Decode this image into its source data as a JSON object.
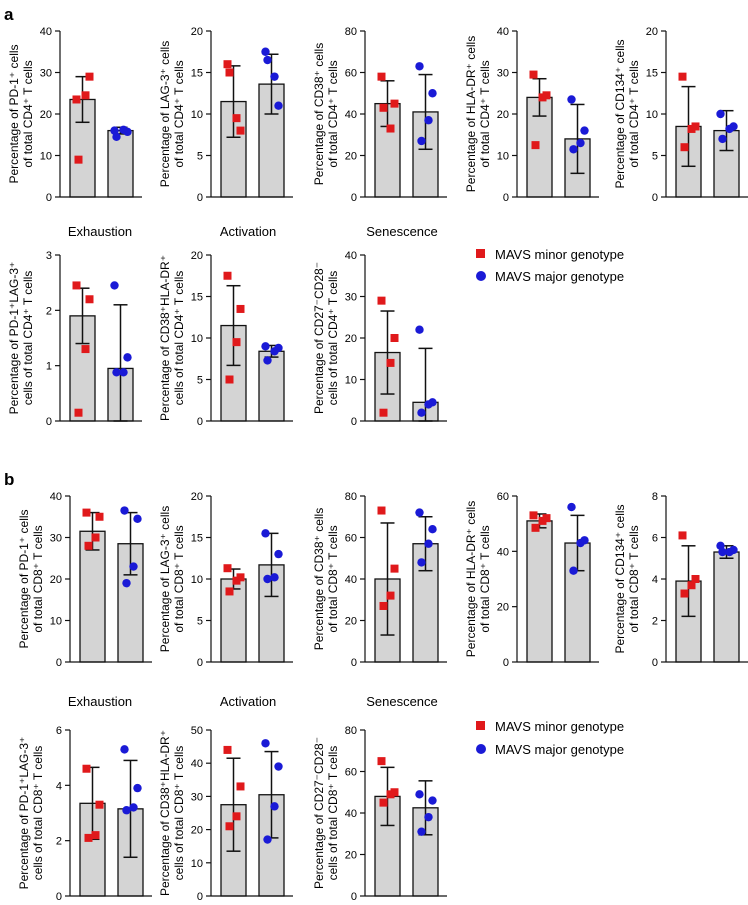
{
  "panel_labels": [
    "a",
    "b"
  ],
  "section_titles": [
    "Exhaustion",
    "Activation",
    "Senescence"
  ],
  "legend": [
    {
      "label": "MAVS minor genotype",
      "color": "#e0191b",
      "marker": "square"
    },
    {
      "label": "MAVS major genotype",
      "color": "#1a1ad6",
      "marker": "circle"
    }
  ],
  "colors": {
    "minor": "#e0191b",
    "major": "#1a1ad6",
    "bar_fill": "#d4d4d4",
    "axis": "#111111"
  },
  "chart_data": [
    {
      "type": "bar",
      "panel": "a",
      "ylabel": [
        "Percentage of PD-1⁺ cells",
        "of total CD4⁺ T cells"
      ],
      "ylim": [
        0,
        40
      ],
      "yticks": [
        0,
        10,
        20,
        30,
        40
      ],
      "series": [
        {
          "group": "minor",
          "mean": 23.5,
          "sd": 5.5,
          "points": [
            23.5,
            29,
            24.5,
            9
          ]
        },
        {
          "group": "major",
          "mean": 16,
          "sd": 0.8,
          "points": [
            16,
            15.7,
            16.2,
            14.5
          ]
        }
      ]
    },
    {
      "type": "bar",
      "panel": "a",
      "ylabel": [
        "Percentage of LAG-3⁺ cells",
        "of total CD4⁺ T cells"
      ],
      "ylim": [
        0,
        20
      ],
      "yticks": [
        0,
        5,
        10,
        15,
        20
      ],
      "series": [
        {
          "group": "minor",
          "mean": 11.5,
          "sd": 4.3,
          "points": [
            16,
            8,
            9.5,
            15
          ]
        },
        {
          "group": "major",
          "mean": 13.6,
          "sd": 3.6,
          "points": [
            17.5,
            11,
            14.5,
            16.5
          ]
        }
      ]
    },
    {
      "type": "bar",
      "panel": "a",
      "ylabel": [
        "Percentage of CD38⁺ cells",
        "of total CD4⁺ T cells"
      ],
      "ylim": [
        0,
        80
      ],
      "yticks": [
        0,
        20,
        40,
        60,
        80
      ],
      "series": [
        {
          "group": "minor",
          "mean": 45,
          "sd": 11,
          "points": [
            58,
            45,
            33,
            43
          ]
        },
        {
          "group": "major",
          "mean": 41,
          "sd": 18,
          "points": [
            63,
            50,
            37,
            27
          ]
        }
      ]
    },
    {
      "type": "bar",
      "panel": "a",
      "ylabel": [
        "Percentage of HLA-DR⁺ cells",
        "of total CD4⁺ T cells"
      ],
      "ylim": [
        0,
        40
      ],
      "yticks": [
        0,
        10,
        20,
        30,
        40
      ],
      "series": [
        {
          "group": "minor",
          "mean": 24,
          "sd": 4.5,
          "points": [
            29.5,
            24.5,
            24,
            12.5
          ]
        },
        {
          "group": "major",
          "mean": 14,
          "sd": 8.3,
          "points": [
            23.5,
            16,
            13,
            11.5
          ]
        }
      ]
    },
    {
      "type": "bar",
      "panel": "a",
      "ylabel": [
        "Percentage of CD134⁺ cells",
        "of total CD4⁺ T cells"
      ],
      "ylim": [
        0,
        20
      ],
      "yticks": [
        0,
        5,
        10,
        15,
        20
      ],
      "series": [
        {
          "group": "minor",
          "mean": 8.5,
          "sd": 4.8,
          "points": [
            14.5,
            8.5,
            8.2,
            6
          ]
        },
        {
          "group": "major",
          "mean": 8,
          "sd": 2.4,
          "points": [
            10,
            8.5,
            8.2,
            7
          ]
        }
      ]
    },
    {
      "type": "bar",
      "panel": "a",
      "title": "Exhaustion",
      "ylabel": [
        "Percentage of PD-1⁺LAG-3⁺",
        "cells of total CD4⁺ T cells"
      ],
      "ylim": [
        0,
        3
      ],
      "yticks": [
        0,
        1,
        2,
        3
      ],
      "series": [
        {
          "group": "minor",
          "mean": 1.9,
          "sd": 0.5,
          "points": [
            2.45,
            2.2,
            1.3,
            0.15
          ]
        },
        {
          "group": "major",
          "mean": 0.95,
          "sd": 1.15,
          "points": [
            2.45,
            1.15,
            0.88,
            0.88
          ]
        }
      ]
    },
    {
      "type": "bar",
      "panel": "a",
      "title": "Activation",
      "ylabel": [
        "Percentage of CD38⁺HLA-DR⁺",
        "cells of total CD4⁺ T cells"
      ],
      "ylim": [
        0,
        20
      ],
      "yticks": [
        0,
        5,
        10,
        15,
        20
      ],
      "series": [
        {
          "group": "minor",
          "mean": 11.5,
          "sd": 4.8,
          "points": [
            17.5,
            13.5,
            9.5,
            5
          ]
        },
        {
          "group": "major",
          "mean": 8.4,
          "sd": 0.7,
          "points": [
            9,
            8.8,
            8.4,
            7.3
          ]
        }
      ]
    },
    {
      "type": "bar",
      "panel": "a",
      "title": "Senescence",
      "ylabel": [
        "Percentage of CD27⁻CD28⁻",
        "cells of total CD4⁺ T cells"
      ],
      "ylim": [
        0,
        40
      ],
      "yticks": [
        0,
        10,
        20,
        30,
        40
      ],
      "series": [
        {
          "group": "minor",
          "mean": 16.5,
          "sd": 10,
          "points": [
            29,
            20,
            14,
            2
          ]
        },
        {
          "group": "major",
          "mean": 4.5,
          "sd": 13,
          "points": [
            22,
            4.5,
            4,
            2
          ]
        }
      ]
    },
    {
      "type": "bar",
      "panel": "b",
      "ylabel": [
        "Percentage of PD-1⁺ cells",
        "of total CD8⁺ T cells"
      ],
      "ylim": [
        0,
        40
      ],
      "yticks": [
        0,
        10,
        20,
        30,
        40
      ],
      "series": [
        {
          "group": "minor",
          "mean": 31.5,
          "sd": 4.5,
          "points": [
            36,
            35,
            30,
            28
          ]
        },
        {
          "group": "major",
          "mean": 28.5,
          "sd": 7.5,
          "points": [
            36.5,
            34.5,
            23,
            19
          ]
        }
      ]
    },
    {
      "type": "bar",
      "panel": "b",
      "ylabel": [
        "Percentage of LAG-3⁺ cells",
        "of total CD8⁺ T cells"
      ],
      "ylim": [
        0,
        20
      ],
      "yticks": [
        0,
        5,
        10,
        15,
        20
      ],
      "series": [
        {
          "group": "minor",
          "mean": 10,
          "sd": 1.2,
          "points": [
            11.3,
            10.2,
            9.8,
            8.5
          ]
        },
        {
          "group": "major",
          "mean": 11.7,
          "sd": 3.8,
          "points": [
            15.5,
            13,
            10.2,
            10
          ]
        }
      ]
    },
    {
      "type": "bar",
      "panel": "b",
      "ylabel": [
        "Percentage of CD38⁺ cells",
        "of total CD8⁺ T cells"
      ],
      "ylim": [
        0,
        80
      ],
      "yticks": [
        0,
        20,
        40,
        60,
        80
      ],
      "series": [
        {
          "group": "minor",
          "mean": 40,
          "sd": 27,
          "points": [
            73,
            45,
            32,
            27
          ]
        },
        {
          "group": "major",
          "mean": 57,
          "sd": 13,
          "points": [
            72,
            64,
            57,
            48
          ]
        }
      ]
    },
    {
      "type": "bar",
      "panel": "b",
      "ylabel": [
        "Percentage of HLA-DR⁺ cells",
        "of total CD8⁺ T cells"
      ],
      "ylim": [
        0,
        60
      ],
      "yticks": [
        0,
        20,
        40,
        60
      ],
      "series": [
        {
          "group": "minor",
          "mean": 51,
          "sd": 2.5,
          "points": [
            53,
            52,
            51,
            48.5
          ]
        },
        {
          "group": "major",
          "mean": 43,
          "sd": 10,
          "points": [
            56,
            44,
            43,
            33
          ]
        }
      ]
    },
    {
      "type": "bar",
      "panel": "b",
      "ylabel": [
        "Percentage of CD134⁺ cells",
        "of total CD8⁺ T cells"
      ],
      "ylim": [
        0,
        8
      ],
      "yticks": [
        0,
        2,
        4,
        6,
        8
      ],
      "series": [
        {
          "group": "minor",
          "mean": 3.9,
          "sd": 1.7,
          "points": [
            6.1,
            4,
            3.7,
            3.3
          ]
        },
        {
          "group": "major",
          "mean": 5.3,
          "sd": 0.3,
          "points": [
            5.6,
            5.4,
            5.3,
            5.3
          ]
        }
      ]
    },
    {
      "type": "bar",
      "panel": "b",
      "title": "Exhaustion",
      "ylabel": [
        "Percentage of PD-1⁺LAG-3⁺",
        "cells of total CD8⁺ T cells"
      ],
      "ylim": [
        0,
        6
      ],
      "yticks": [
        0,
        2,
        4,
        6
      ],
      "series": [
        {
          "group": "minor",
          "mean": 3.35,
          "sd": 1.3,
          "points": [
            4.6,
            3.3,
            2.2,
            2.1
          ]
        },
        {
          "group": "major",
          "mean": 3.15,
          "sd": 1.75,
          "points": [
            5.3,
            3.9,
            3.2,
            3.1
          ]
        }
      ]
    },
    {
      "type": "bar",
      "panel": "b",
      "title": "Activation",
      "ylabel": [
        "Percentage of CD38⁺HLA-DR⁺",
        "cells of total CD8⁺ T cells"
      ],
      "ylim": [
        0,
        50
      ],
      "yticks": [
        0,
        10,
        20,
        30,
        40,
        50
      ],
      "series": [
        {
          "group": "minor",
          "mean": 27.5,
          "sd": 14,
          "points": [
            44,
            33,
            24,
            21
          ]
        },
        {
          "group": "major",
          "mean": 30.5,
          "sd": 13,
          "points": [
            46,
            39,
            27,
            17
          ]
        }
      ]
    },
    {
      "type": "bar",
      "panel": "b",
      "title": "Senescence",
      "ylabel": [
        "Percentage of CD27⁻CD28⁻",
        "cells of total CD8⁺ T cells"
      ],
      "ylim": [
        0,
        80
      ],
      "yticks": [
        0,
        20,
        40,
        60,
        80
      ],
      "series": [
        {
          "group": "minor",
          "mean": 48,
          "sd": 14,
          "points": [
            65,
            50,
            49,
            45
          ]
        },
        {
          "group": "major",
          "mean": 42.5,
          "sd": 13,
          "points": [
            49,
            46,
            38,
            31
          ]
        }
      ]
    }
  ]
}
